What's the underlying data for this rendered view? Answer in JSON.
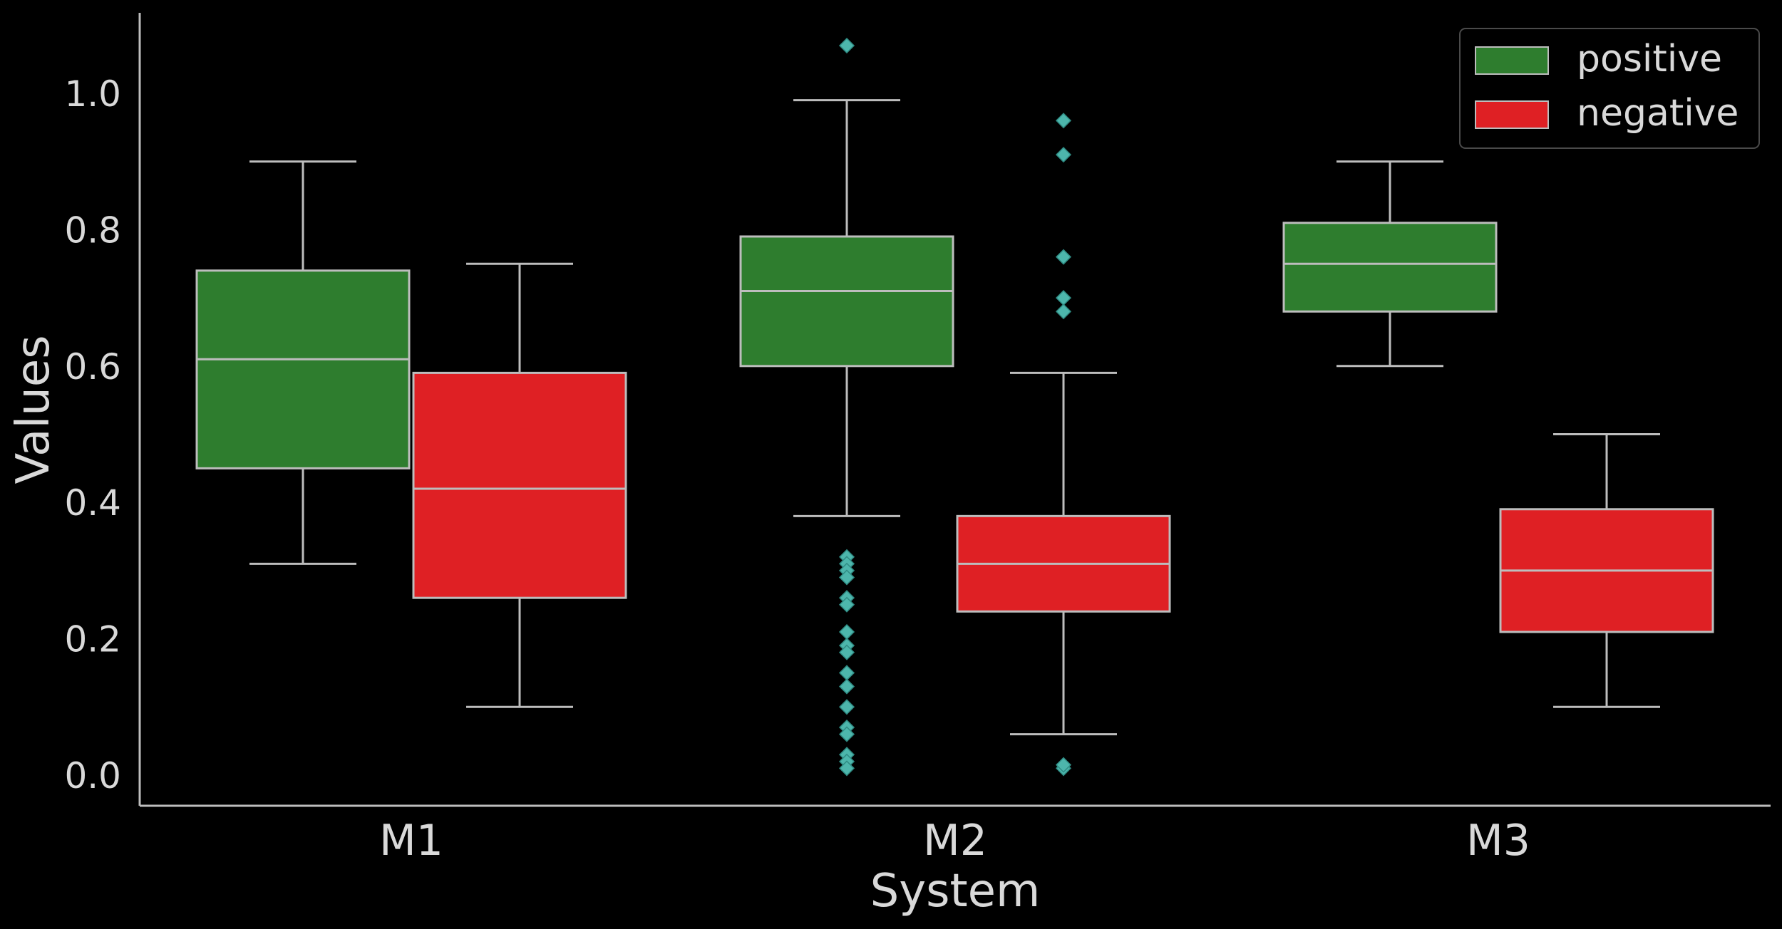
{
  "chart_data": {
    "type": "box",
    "title": "",
    "xlabel": "System",
    "ylabel": "Values",
    "ylim": [
      -0.045,
      1.12
    ],
    "yticks": [
      "0.0",
      "0.2",
      "0.4",
      "0.6",
      "0.8",
      "1.0"
    ],
    "yticks_values": [
      0.0,
      0.2,
      0.4,
      0.6,
      0.8,
      1.0
    ],
    "categories": [
      "M1",
      "M2",
      "M3"
    ],
    "grid": false,
    "legend_position": "top-right",
    "colors": {
      "background": "#000000",
      "positive": "#2e7d2e",
      "negative": "#df2024",
      "box_edge": "#bdbdbd",
      "outlier": "#4db6ac",
      "text": "#d9d9d9"
    },
    "series": [
      {
        "name": "positive",
        "boxes": [
          {
            "category": "M1",
            "whisker_low": 0.31,
            "q1": 0.45,
            "median": 0.61,
            "q3": 0.74,
            "whisker_high": 0.9,
            "outliers": []
          },
          {
            "category": "M2",
            "whisker_low": 0.38,
            "q1": 0.6,
            "median": 0.71,
            "q3": 0.79,
            "whisker_high": 0.99,
            "outliers": [
              1.07,
              0.32,
              0.31,
              0.3,
              0.29,
              0.26,
              0.25,
              0.21,
              0.19,
              0.18,
              0.15,
              0.13,
              0.1,
              0.07,
              0.06,
              0.03,
              0.02,
              0.01
            ]
          },
          {
            "category": "M3",
            "whisker_low": 0.6,
            "q1": 0.68,
            "median": 0.75,
            "q3": 0.81,
            "whisker_high": 0.9,
            "outliers": []
          }
        ]
      },
      {
        "name": "negative",
        "boxes": [
          {
            "category": "M1",
            "whisker_low": 0.1,
            "q1": 0.26,
            "median": 0.42,
            "q3": 0.59,
            "whisker_high": 0.75,
            "outliers": []
          },
          {
            "category": "M2",
            "whisker_low": 0.06,
            "q1": 0.24,
            "median": 0.31,
            "q3": 0.38,
            "whisker_high": 0.59,
            "outliers": [
              0.96,
              0.91,
              0.76,
              0.7,
              0.68,
              0.01,
              0.015
            ]
          },
          {
            "category": "M3",
            "whisker_low": 0.1,
            "q1": 0.21,
            "median": 0.3,
            "q3": 0.39,
            "whisker_high": 0.5,
            "outliers": []
          }
        ]
      }
    ]
  }
}
